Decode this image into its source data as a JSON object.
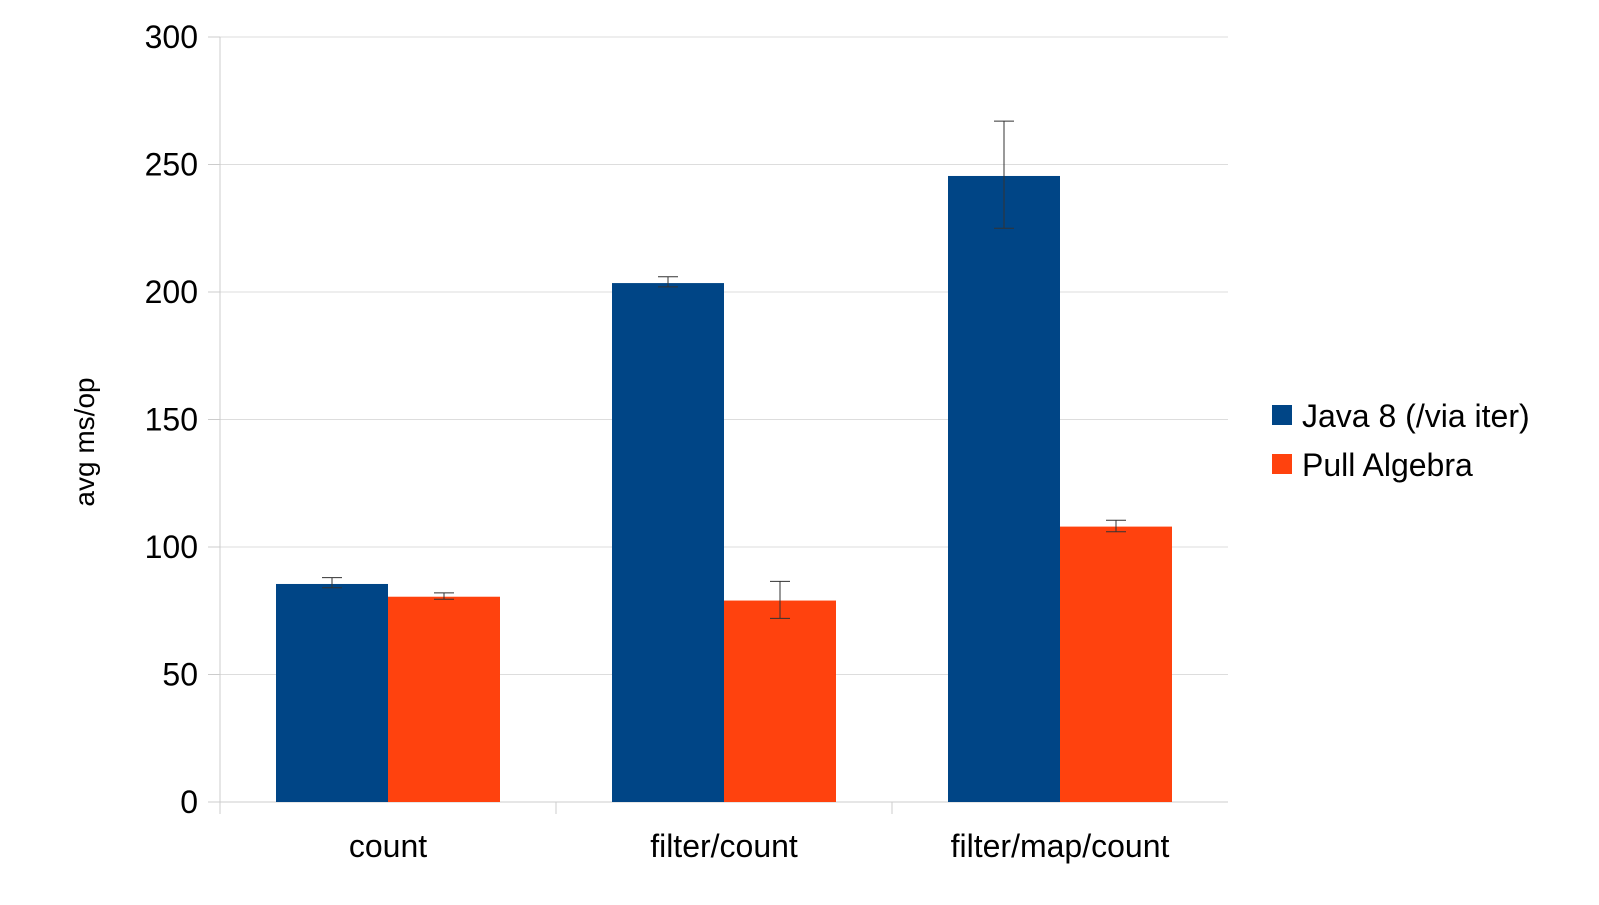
{
  "chart_data": {
    "type": "bar",
    "categories": [
      "count",
      "filter/count",
      "filter/map/count"
    ],
    "series": [
      {
        "name": "Java 8 (/via iter)",
        "color": "#004586",
        "values": [
          85.5,
          203.5,
          245.5
        ],
        "error_low": [
          84,
          202,
          225
        ],
        "error_high": [
          88,
          206,
          267
        ]
      },
      {
        "name": "Pull Algebra",
        "color": "#ff420e",
        "values": [
          80.5,
          79,
          108
        ],
        "error_low": [
          79.5,
          72,
          106
        ],
        "error_high": [
          82,
          86.5,
          110.5
        ]
      }
    ],
    "xlabel": "",
    "ylabel": "avg ms/op",
    "ylim": [
      0,
      300
    ],
    "yticks": [
      0,
      50,
      100,
      150,
      200,
      250,
      300
    ],
    "grid": true,
    "legend": "right"
  }
}
